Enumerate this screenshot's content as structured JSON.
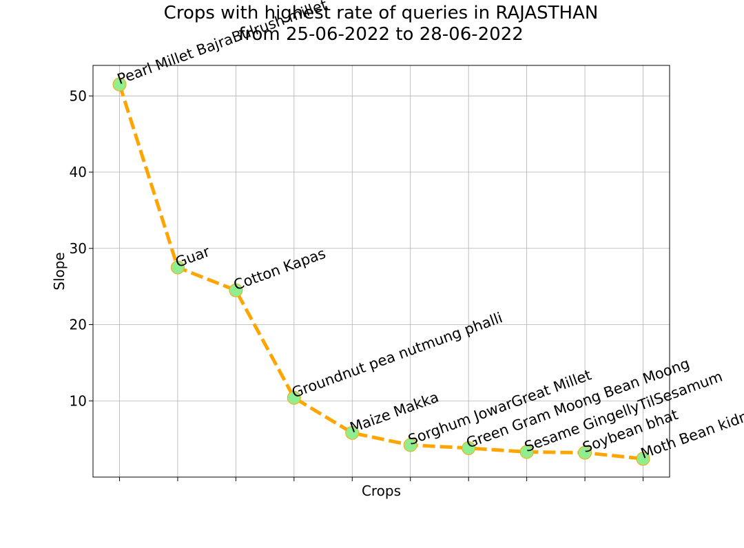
{
  "chart_data": {
    "type": "line",
    "title_line1": "Crops with highest rate of queries in RAJASTHAN",
    "title_line2": "from 25-06-2022 to 28-06-2022",
    "xlabel": "Crops",
    "ylabel": "Slope",
    "categories": [
      "Pearl Millet BajraBulrush millet",
      "Guar",
      "Cotton Kapas",
      "Groundnut pea nutmung phalli",
      "Maize Makka",
      "Sorghum JowarGreat Millet",
      "Green Gram Moong Bean Moong",
      "Sesame GingellyTilSesamum",
      "Soybean bhat",
      "Moth Bean kidney bean"
    ],
    "values": [
      51.5,
      27.5,
      24.5,
      10.4,
      5.8,
      4.2,
      3.8,
      3.3,
      3.2,
      2.4
    ],
    "ylim": [
      0,
      54
    ],
    "yticks": [
      10,
      20,
      30,
      40,
      50
    ],
    "grid": true,
    "line_color": "#ffa500",
    "line_style": "dashed",
    "marker_color": "#90ee90",
    "marker_edge_color": "#ffa500"
  }
}
